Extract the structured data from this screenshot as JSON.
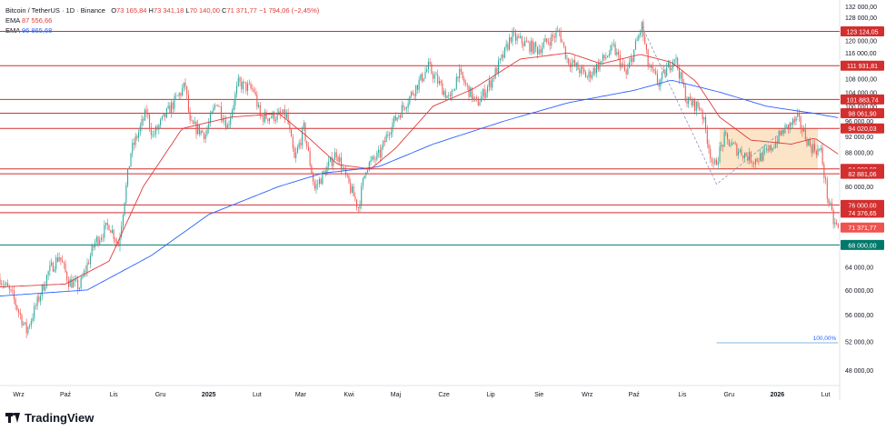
{
  "header": {
    "symbol": "Bitcoin / TetherUS · 1D · Binance",
    "o_label": "O",
    "o_value": "73 165,84",
    "h_label": "H",
    "h_value": "73 341,18",
    "l_label": "L",
    "l_value": "70 140,00",
    "c_label": "C",
    "c_value": "71 371,77",
    "change": "−1 794,06 (−2,45%)"
  },
  "ema_fast": {
    "label": "EMA",
    "value": "87 556,66",
    "color": "#e03b3b"
  },
  "ema_slow": {
    "label": "EMA",
    "value": "96 865,68",
    "color": "#2962ff"
  },
  "brand": {
    "name": "TradingView",
    "icon": "tradingview-logo-icon"
  },
  "colors": {
    "up": "#26a69a",
    "down": "#ef5350",
    "level": "#d32f2f",
    "support": "#00796b",
    "zone": "#fbe3c4"
  },
  "chart_data": {
    "type": "candlestick",
    "y_scale": "log",
    "ylim": [
      46000,
      133000
    ],
    "y_ticks": [
      48000,
      52000,
      56000,
      60000,
      64000,
      68000,
      72000,
      76000,
      80000,
      84000,
      88000,
      92000,
      96000,
      100000,
      104000,
      108000,
      112000,
      116000,
      120000,
      124000,
      128000,
      132000
    ],
    "y_tick_labels": [
      "48 000,00",
      "52 000,00",
      "56 000,00",
      "60 000,00",
      "64 000,00",
      "68 000,00",
      "72 000,00",
      "76 000,00",
      "80 000,00",
      "84 000,00",
      "88 000,00",
      "92 000,00",
      "96 000,00",
      "100 000,00",
      "104 000,00",
      "108 000,00",
      "112 000,00",
      "116 000,00",
      "120 000,00",
      "124 000,00",
      "128 000,00",
      "132 000,00"
    ],
    "x_ticks": [
      {
        "label": "Wrz",
        "date": "2024-09-01"
      },
      {
        "label": "Paź",
        "date": "2024-10-01"
      },
      {
        "label": "Lis",
        "date": "2024-11-01"
      },
      {
        "label": "Gru",
        "date": "2024-12-01"
      },
      {
        "label": "2025",
        "date": "2025-01-01",
        "bold": true
      },
      {
        "label": "Lut",
        "date": "2025-02-01"
      },
      {
        "label": "Mar",
        "date": "2025-03-01"
      },
      {
        "label": "Kwi",
        "date": "2025-04-01"
      },
      {
        "label": "Maj",
        "date": "2025-05-01"
      },
      {
        "label": "Cze",
        "date": "2025-06-01"
      },
      {
        "label": "Lip",
        "date": "2025-07-01"
      },
      {
        "label": "Sie",
        "date": "2025-08-01"
      },
      {
        "label": "Wrz",
        "date": "2025-09-01"
      },
      {
        "label": "Paź",
        "date": "2025-10-01"
      },
      {
        "label": "Lis",
        "date": "2025-11-01"
      },
      {
        "label": "Gru",
        "date": "2025-12-01"
      },
      {
        "label": "2026",
        "date": "2026-01-01",
        "bold": true
      },
      {
        "label": "Lut",
        "date": "2026-02-01"
      }
    ],
    "x_range": [
      "2024-08-20",
      "2026-02-10"
    ],
    "price_anchors": [
      [
        "2024-08-20",
        62000
      ],
      [
        "2024-08-28",
        59000
      ],
      [
        "2024-09-06",
        53500
      ],
      [
        "2024-09-13",
        58000
      ],
      [
        "2024-09-20",
        63000
      ],
      [
        "2024-09-27",
        66000
      ],
      [
        "2024-10-03",
        61500
      ],
      [
        "2024-10-10",
        60500
      ],
      [
        "2024-10-20",
        68500
      ],
      [
        "2024-10-29",
        72000
      ],
      [
        "2024-11-04",
        68000
      ],
      [
        "2024-11-12",
        88000
      ],
      [
        "2024-11-22",
        98500
      ],
      [
        "2024-11-26",
        92000
      ],
      [
        "2024-12-05",
        98000
      ],
      [
        "2024-12-17",
        106000
      ],
      [
        "2024-12-20",
        95000
      ],
      [
        "2024-12-30",
        92500
      ],
      [
        "2025-01-06",
        101500
      ],
      [
        "2025-01-13",
        94500
      ],
      [
        "2025-01-20",
        106500
      ],
      [
        "2025-01-30",
        104500
      ],
      [
        "2025-02-03",
        97000
      ],
      [
        "2025-02-20",
        97500
      ],
      [
        "2025-02-25",
        86000
      ],
      [
        "2025-03-03",
        94000
      ],
      [
        "2025-03-10",
        79500
      ],
      [
        "2025-03-24",
        88000
      ],
      [
        "2025-03-30",
        82000
      ],
      [
        "2025-04-07",
        75500
      ],
      [
        "2025-04-12",
        84500
      ],
      [
        "2025-04-21",
        87500
      ],
      [
        "2025-04-27",
        94000
      ],
      [
        "2025-05-12",
        104000
      ],
      [
        "2025-05-22",
        111500
      ],
      [
        "2025-06-05",
        101500
      ],
      [
        "2025-06-10",
        110000
      ],
      [
        "2025-06-22",
        100500
      ],
      [
        "2025-07-01",
        107000
      ],
      [
        "2025-07-10",
        116000
      ],
      [
        "2025-07-14",
        121500
      ],
      [
        "2025-07-31",
        117000
      ],
      [
        "2025-08-14",
        123000
      ],
      [
        "2025-08-19",
        114000
      ],
      [
        "2025-09-01",
        108500
      ],
      [
        "2025-09-18",
        117500
      ],
      [
        "2025-09-26",
        109000
      ],
      [
        "2025-10-06",
        125000
      ],
      [
        "2025-10-10",
        112000
      ],
      [
        "2025-10-17",
        106500
      ],
      [
        "2025-10-27",
        115000
      ],
      [
        "2025-11-04",
        101500
      ],
      [
        "2025-11-13",
        99500
      ],
      [
        "2025-11-21",
        84000
      ],
      [
        "2025-11-28",
        91500
      ],
      [
        "2025-12-05",
        89000
      ],
      [
        "2025-12-17",
        86000
      ],
      [
        "2025-12-26",
        88000
      ],
      [
        "2026-01-05",
        93500
      ],
      [
        "2026-01-14",
        96500
      ],
      [
        "2026-01-22",
        89500
      ],
      [
        "2026-01-29",
        88000
      ],
      [
        "2026-02-02",
        78000
      ],
      [
        "2026-02-06",
        72500
      ],
      [
        "2026-02-09",
        71371.77
      ]
    ],
    "ema_fast_anchors": [
      [
        "2024-08-20",
        60500
      ],
      [
        "2024-10-01",
        61000
      ],
      [
        "2024-10-29",
        65000
      ],
      [
        "2024-11-20",
        80000
      ],
      [
        "2024-12-15",
        94000
      ],
      [
        "2025-01-15",
        97000
      ],
      [
        "2025-02-15",
        98000
      ],
      [
        "2025-03-05",
        92000
      ],
      [
        "2025-03-25",
        85000
      ],
      [
        "2025-04-15",
        84000
      ],
      [
        "2025-05-01",
        89000
      ],
      [
        "2025-05-25",
        100000
      ],
      [
        "2025-06-20",
        105000
      ],
      [
        "2025-07-20",
        114000
      ],
      [
        "2025-08-20",
        116000
      ],
      [
        "2025-09-10",
        112500
      ],
      [
        "2025-10-05",
        115500
      ],
      [
        "2025-10-25",
        113000
      ],
      [
        "2025-11-10",
        107000
      ],
      [
        "2025-11-25",
        97000
      ],
      [
        "2025-12-15",
        91000
      ],
      [
        "2026-01-10",
        90000
      ],
      [
        "2026-01-25",
        91500
      ],
      [
        "2026-02-09",
        87556.66
      ]
    ],
    "ema_slow_anchors": [
      [
        "2024-08-20",
        59000
      ],
      [
        "2024-10-15",
        60000
      ],
      [
        "2024-11-25",
        66000
      ],
      [
        "2025-01-01",
        74000
      ],
      [
        "2025-02-15",
        80000
      ],
      [
        "2025-03-15",
        83000
      ],
      [
        "2025-04-20",
        84500
      ],
      [
        "2025-05-25",
        90000
      ],
      [
        "2025-07-10",
        96000
      ],
      [
        "2025-08-20",
        101000
      ],
      [
        "2025-10-01",
        104500
      ],
      [
        "2025-10-25",
        107500
      ],
      [
        "2025-11-25",
        104000
      ],
      [
        "2025-12-25",
        100000
      ],
      [
        "2026-01-25",
        98000
      ],
      [
        "2026-02-09",
        96865.68
      ]
    ],
    "levels": [
      {
        "value": 123124.05,
        "label": "123 124,05"
      },
      {
        "value": 111931.81,
        "label": "111 931,81"
      },
      {
        "value": 101883.74,
        "label": "101 883,74"
      },
      {
        "value": 98061.9,
        "label": "98 061,90"
      },
      {
        "value": 94020.03,
        "label": "94 020,03"
      },
      {
        "value": 84000.0,
        "label": "84 000,00"
      },
      {
        "value": 82881.06,
        "label": "82 881,06"
      },
      {
        "value": 76000.0,
        "label": "76 000,00"
      },
      {
        "value": 74376.65,
        "label": "74 376,65"
      }
    ],
    "current_price": {
      "value": 71371.77,
      "label": "71 371,77"
    },
    "support": {
      "value": 68000.0,
      "label": "68 000,00"
    },
    "zone": {
      "from": "2025-11-25",
      "to": "2026-01-27",
      "low": 84000,
      "high": 94020
    },
    "dashed_path": [
      [
        "2025-10-06",
        125000
      ],
      [
        "2025-11-23",
        80500
      ],
      [
        "2026-01-14",
        96500
      ]
    ],
    "fib_label": "100,00%",
    "fib_line": {
      "from": "2025-11-23",
      "to": "2026-02-09",
      "value": 51800
    }
  }
}
